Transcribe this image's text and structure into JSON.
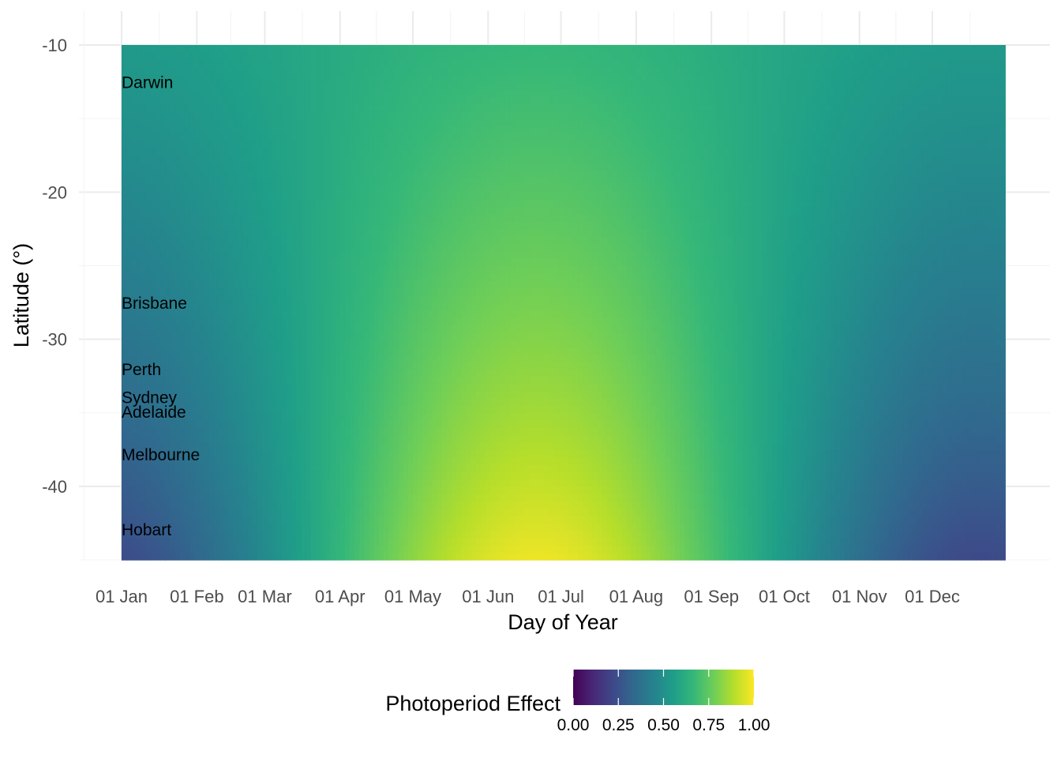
{
  "chart_data": {
    "type": "heatmap",
    "title": "",
    "xlabel": "Day of Year",
    "ylabel": "Latitude (°)",
    "x_tick_labels": [
      "01 Jan",
      "01 Feb",
      "01 Mar",
      "01 Apr",
      "01 May",
      "01 Jun",
      "01 Jul",
      "01 Aug",
      "01 Sep",
      "01 Oct",
      "01 Nov",
      "01 Dec"
    ],
    "x_tick_days": [
      1,
      32,
      60,
      91,
      121,
      152,
      182,
      213,
      244,
      274,
      305,
      335
    ],
    "x_range_days": [
      1,
      365
    ],
    "y_ticks": [
      -10,
      -20,
      -30,
      -40
    ],
    "y_tick_labels": [
      "-10",
      "-20",
      "-30",
      "-40"
    ],
    "y_range": [
      -45,
      -10
    ],
    "colormap": "viridis",
    "value_model": "photoperiod effect peaks near the June solstice at high southern latitudes and is lowest near December at high latitudes; near-constant ~0.6 near the equator",
    "cities": [
      {
        "name": "Darwin",
        "lat": -12.5
      },
      {
        "name": "Brisbane",
        "lat": -27.5
      },
      {
        "name": "Perth",
        "lat": -32.0
      },
      {
        "name": "Sydney",
        "lat": -33.9
      },
      {
        "name": "Adelaide",
        "lat": -34.9
      },
      {
        "name": "Melbourne",
        "lat": -37.8
      },
      {
        "name": "Hobart",
        "lat": -42.9
      }
    ],
    "legend": {
      "title": "Photoperiod Effect",
      "position": "bottom",
      "ticks": [
        0.0,
        0.25,
        0.5,
        0.75,
        1.0
      ],
      "tick_labels": [
        "0.00",
        "0.25",
        "0.50",
        "0.75",
        "1.00"
      ]
    },
    "grid": true
  },
  "colors": {
    "viridis": [
      "#440154",
      "#482878",
      "#3e4989",
      "#31688e",
      "#26828e",
      "#1f9e89",
      "#35b779",
      "#6ece58",
      "#b5de2b",
      "#fde725"
    ],
    "grid_major": "#ebebeb",
    "grid_minor": "#f5f5f5"
  }
}
